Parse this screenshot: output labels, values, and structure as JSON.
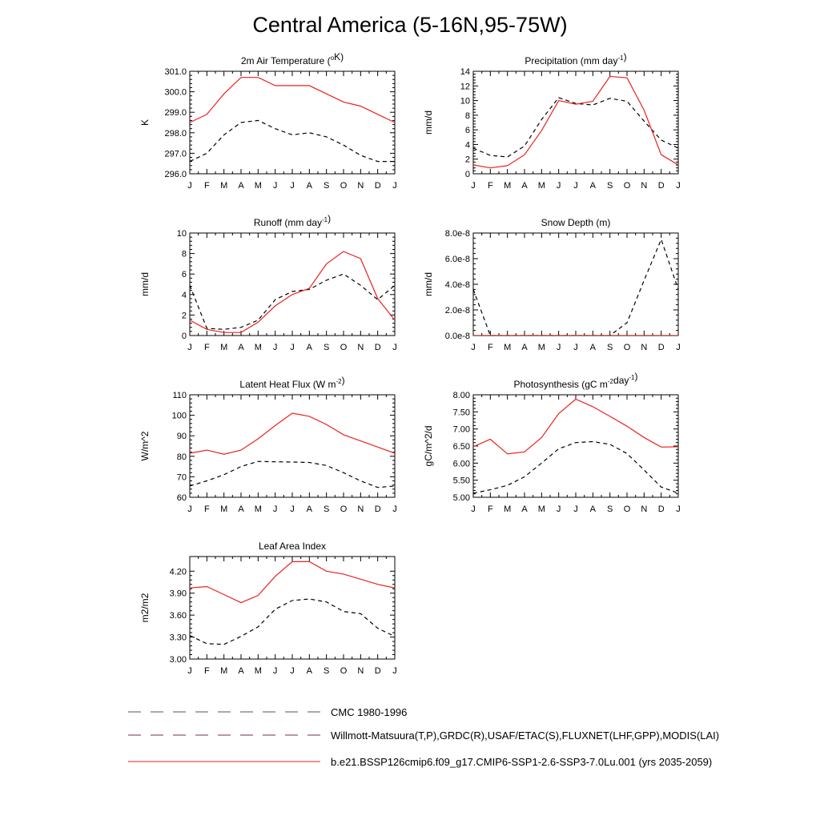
{
  "title": "Central America (5-16N,95-75W)",
  "months": [
    "J",
    "F",
    "M",
    "A",
    "M",
    "J",
    "J",
    "A",
    "S",
    "O",
    "N",
    "D",
    "J"
  ],
  "colors": {
    "obs": "#000000",
    "model": "#e8231f"
  },
  "chart_data": [
    {
      "type": "line",
      "title": "2m Air Temperature (",
      "title_sup": "o",
      "title_tail": "K)",
      "ylabel": "K",
      "ylim": [
        296.0,
        301.0
      ],
      "yticks": [
        "296.0",
        "297.0",
        "298.0",
        "299.0",
        "300.0",
        "301.0"
      ],
      "ytick_values": [
        296,
        297,
        298,
        299,
        300,
        301
      ],
      "series": [
        {
          "style": "dashed",
          "values": [
            296.6,
            297.0,
            297.9,
            298.5,
            298.6,
            298.2,
            297.9,
            298.0,
            297.8,
            297.4,
            296.9,
            296.6,
            296.6
          ]
        },
        {
          "style": "solid",
          "values": [
            298.5,
            298.9,
            299.9,
            300.7,
            300.7,
            300.3,
            300.3,
            300.3,
            299.9,
            299.5,
            299.3,
            298.9,
            298.5
          ]
        }
      ]
    },
    {
      "type": "line",
      "title": "Precipitation (mm day",
      "title_sup": "-1",
      "title_tail": ")",
      "ylabel": "mm/d",
      "ylim": [
        0,
        14
      ],
      "yticks": [
        "0",
        "2",
        "4",
        "6",
        "8",
        "10",
        "12",
        "14"
      ],
      "ytick_values": [
        0,
        2,
        4,
        6,
        8,
        10,
        12,
        14
      ],
      "series": [
        {
          "style": "dashed",
          "values": [
            3.5,
            2.5,
            2.3,
            3.8,
            7.4,
            10.4,
            9.6,
            9.4,
            10.3,
            9.9,
            7.2,
            4.6,
            3.5
          ]
        },
        {
          "style": "solid",
          "values": [
            1.2,
            0.8,
            1.1,
            2.6,
            5.9,
            10.0,
            9.5,
            9.9,
            13.3,
            13.1,
            8.7,
            2.6,
            1.2
          ]
        }
      ]
    },
    {
      "type": "line",
      "title": "Runoff (mm day",
      "title_sup": "-1",
      "title_tail": ")",
      "ylabel": "mm/d",
      "ylim": [
        0,
        10
      ],
      "yticks": [
        "0",
        "2",
        "4",
        "6",
        "8",
        "10"
      ],
      "ytick_values": [
        0,
        2,
        4,
        6,
        8,
        10
      ],
      "series": [
        {
          "style": "dashed",
          "values": [
            4.9,
            0.7,
            0.6,
            0.8,
            1.5,
            3.5,
            4.3,
            4.5,
            5.4,
            6.0,
            4.9,
            3.5,
            4.9
          ]
        },
        {
          "style": "solid",
          "values": [
            1.5,
            0.6,
            0.3,
            0.3,
            1.3,
            2.9,
            4.0,
            4.6,
            7.0,
            8.2,
            7.5,
            3.6,
            1.5
          ]
        }
      ]
    },
    {
      "type": "line",
      "title": "Snow Depth (m)",
      "title_sup": "",
      "title_tail": "",
      "ylabel": "mm/d",
      "ylim": [
        0,
        8e-08
      ],
      "yticks": [
        "0.0e-8",
        "2.0e-8",
        "4.0e-8",
        "6.0e-8",
        "8.0e-8"
      ],
      "ytick_values": [
        0,
        2e-08,
        4e-08,
        6e-08,
        8e-08
      ],
      "series": [
        {
          "style": "dashed",
          "values": [
            3.6e-08,
            0,
            0,
            0,
            0,
            0,
            0,
            0,
            0,
            1e-08,
            4.3e-08,
            7.5e-08,
            3.6e-08
          ]
        },
        {
          "style": "solid",
          "values": [
            0,
            0,
            0,
            0,
            0,
            0,
            0,
            0,
            0,
            0,
            0,
            0,
            0
          ]
        }
      ]
    },
    {
      "type": "line",
      "title": "Latent Heat Flux (W m",
      "title_sup": "-2",
      "title_tail": ")",
      "ylabel": "W/m^2",
      "ylim": [
        60,
        110
      ],
      "yticks": [
        "60",
        "70",
        "80",
        "90",
        "100",
        "110"
      ],
      "ytick_values": [
        60,
        70,
        80,
        90,
        100,
        110
      ],
      "series": [
        {
          "style": "dashed",
          "values": [
            65.5,
            68.0,
            71.0,
            75.0,
            77.5,
            77.3,
            77.2,
            77.0,
            75.5,
            72.0,
            68.0,
            64.8,
            65.5
          ]
        },
        {
          "style": "solid",
          "values": [
            81.5,
            83.0,
            81.0,
            83.0,
            88.5,
            95.0,
            101.0,
            99.5,
            95.5,
            90.5,
            87.5,
            84.5,
            81.5
          ]
        }
      ]
    },
    {
      "type": "line",
      "title": "Photosynthesis (gC m",
      "title_sup": "-2",
      "title_tail": "day",
      "title_sup2": "-1",
      "title_tail2": ")",
      "ylabel": "gC/m^2/d",
      "ylim": [
        5.0,
        8.0
      ],
      "yticks": [
        "5.00",
        "5.50",
        "6.00",
        "6.50",
        "7.00",
        "7.50",
        "8.00"
      ],
      "ytick_values": [
        5.0,
        5.5,
        6.0,
        6.5,
        7.0,
        7.5,
        8.0
      ],
      "series": [
        {
          "style": "dashed",
          "values": [
            5.12,
            5.22,
            5.35,
            5.6,
            6.0,
            6.42,
            6.6,
            6.63,
            6.55,
            6.28,
            5.8,
            5.3,
            5.12
          ]
        },
        {
          "style": "solid",
          "values": [
            6.48,
            6.7,
            6.27,
            6.33,
            6.75,
            7.45,
            7.87,
            7.65,
            7.37,
            7.08,
            6.75,
            6.47,
            6.48
          ]
        }
      ]
    },
    {
      "type": "line",
      "title": "Leaf Area Index",
      "title_sup": "",
      "title_tail": "",
      "ylabel": "m2/m2",
      "ylim": [
        3.0,
        4.4
      ],
      "yticks": [
        "3.00",
        "3.30",
        "3.60",
        "3.90",
        "4.20"
      ],
      "ytick_values": [
        3.0,
        3.3,
        3.6,
        3.9,
        4.2
      ],
      "series": [
        {
          "style": "dashed",
          "values": [
            3.32,
            3.21,
            3.2,
            3.31,
            3.44,
            3.68,
            3.8,
            3.82,
            3.78,
            3.65,
            3.62,
            3.42,
            3.31
          ]
        },
        {
          "style": "solid",
          "values": [
            3.97,
            3.99,
            3.88,
            3.77,
            3.87,
            4.13,
            4.33,
            4.33,
            4.2,
            4.16,
            4.09,
            4.02,
            3.97
          ]
        }
      ]
    }
  ],
  "legend": [
    {
      "label": "CMC 1980-1996",
      "style": "dashed",
      "color": "#000000"
    },
    {
      "label": "Willmott-Matsuura(T,P),GRDC(R),USAF/ETAC(S),FLUXNET(LHF,GPP),MODIS(LAI)",
      "style": "dashed-multi",
      "color": "#000000"
    },
    {
      "label": "b.e21.BSSP126cmip6.f09_g17.CMIP6-SSP1-2.6-SSP3-7.0Lu.001 (yrs 2035-2059)",
      "style": "solid",
      "color": "#e8231f"
    }
  ]
}
